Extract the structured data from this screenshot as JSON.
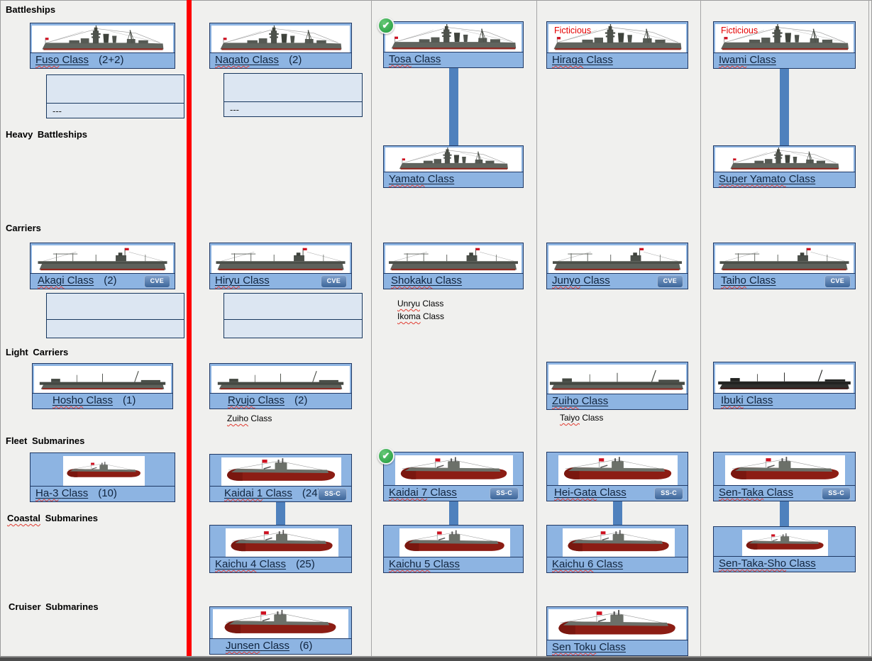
{
  "sections": [
    {
      "label": "Battleships"
    },
    {
      "label": "Heavy Battleships"
    },
    {
      "label": "Carriers"
    },
    {
      "label": "Light Carriers"
    },
    {
      "label": "Fleet Submarines"
    },
    {
      "label": "Coastal Submarines",
      "squiggle_first_word": true
    },
    {
      "label": "Cruiser Submarines"
    }
  ],
  "cards": [
    {
      "id": "fuso",
      "name": "Fuso",
      "suffix": "Class",
      "count": "(2+2)",
      "badge": "",
      "completed": false,
      "overlay_label": "",
      "ship_icon": "battleship-silhouette"
    },
    {
      "id": "nagato",
      "name": "Nagato",
      "suffix": "Class",
      "count": "(2)",
      "badge": "",
      "completed": false,
      "overlay_label": "",
      "ship_icon": "battleship-silhouette"
    },
    {
      "id": "tosa",
      "name": "Tosa",
      "suffix": "Class",
      "count": "",
      "badge": "",
      "completed": true,
      "overlay_label": "",
      "ship_icon": "battleship-silhouette"
    },
    {
      "id": "hiraga",
      "name": "Hiraga",
      "suffix": "Class",
      "count": "",
      "badge": "",
      "completed": false,
      "overlay_label": "Ficticious",
      "ship_icon": "battleship-silhouette"
    },
    {
      "id": "iwami",
      "name": "Iwami",
      "suffix": "Class",
      "count": "",
      "badge": "",
      "completed": false,
      "overlay_label": "Ficticious",
      "ship_icon": "battleship-silhouette"
    },
    {
      "id": "yamato",
      "name": "Yamato",
      "suffix": "Class",
      "count": "",
      "badge": "",
      "completed": false,
      "overlay_label": "",
      "ship_icon": "heavy-battleship-silhouette"
    },
    {
      "id": "superyamato",
      "name": "Super Yamato",
      "suffix": "Class",
      "count": "",
      "badge": "",
      "completed": false,
      "overlay_label": "",
      "ship_icon": "heavy-battleship-silhouette"
    },
    {
      "id": "akagi",
      "name": "Akagi",
      "suffix": "Class",
      "count": "(2)",
      "badge": "CVE",
      "completed": false,
      "overlay_label": "",
      "ship_icon": "fleet-carrier-silhouette"
    },
    {
      "id": "hiryu",
      "name": "Hiryu",
      "suffix": "Class",
      "count": "",
      "badge": "CVE",
      "completed": false,
      "overlay_label": "",
      "ship_icon": "fleet-carrier-silhouette"
    },
    {
      "id": "shokaku",
      "name": "Shokaku",
      "suffix": "Class",
      "count": "",
      "badge": "",
      "completed": false,
      "overlay_label": "",
      "ship_icon": "fleet-carrier-silhouette"
    },
    {
      "id": "junyo",
      "name": "Junyo",
      "suffix": "Class",
      "count": "",
      "badge": "CVE",
      "completed": false,
      "overlay_label": "",
      "ship_icon": "fleet-carrier-silhouette"
    },
    {
      "id": "taiho",
      "name": "Taiho",
      "suffix": "Class",
      "count": "",
      "badge": "CVE",
      "completed": false,
      "overlay_label": "",
      "ship_icon": "fleet-carrier-silhouette"
    },
    {
      "id": "hosho",
      "name": "Hosho",
      "suffix": "Class",
      "count": "(1)",
      "badge": "",
      "completed": false,
      "overlay_label": "",
      "ship_icon": "light-carrier-silhouette"
    },
    {
      "id": "ryujo",
      "name": "Ryujo",
      "suffix": "Class",
      "count": "(2)",
      "badge": "",
      "completed": false,
      "overlay_label": "",
      "ship_icon": "light-carrier-silhouette"
    },
    {
      "id": "zuiho",
      "name": "Zuiho",
      "suffix": "Class",
      "count": "",
      "badge": "",
      "completed": false,
      "overlay_label": "",
      "ship_icon": "light-carrier-silhouette"
    },
    {
      "id": "ibuki",
      "name": "Ibuki",
      "suffix": "Class",
      "count": "",
      "badge": "",
      "completed": false,
      "overlay_label": "",
      "ship_icon": "light-carrier-silhouette"
    },
    {
      "id": "ha3",
      "name": "Ha-3",
      "suffix": "Class",
      "count": "(10)",
      "badge": "",
      "completed": false,
      "overlay_label": "",
      "ship_icon": "submarine-silhouette"
    },
    {
      "id": "kaidai1",
      "name": "Kaidai 1",
      "suffix": "Class",
      "count": "(24)",
      "badge": "SS-C",
      "completed": false,
      "overlay_label": "",
      "ship_icon": "submarine-silhouette"
    },
    {
      "id": "kaidai7",
      "name": "Kaidai 7",
      "suffix": "Class",
      "count": "",
      "badge": "SS-C",
      "completed": true,
      "overlay_label": "",
      "ship_icon": "submarine-silhouette"
    },
    {
      "id": "heigata",
      "name": "Hei-Gata",
      "suffix": "Class",
      "count": "",
      "badge": "SS-C",
      "completed": false,
      "overlay_label": "",
      "ship_icon": "submarine-silhouette"
    },
    {
      "id": "sentaka",
      "name": "Sen-Taka",
      "suffix": "Class",
      "count": "",
      "badge": "SS-C",
      "completed": false,
      "overlay_label": "",
      "ship_icon": "submarine-silhouette"
    },
    {
      "id": "kaichu4",
      "name": "Kaichu 4",
      "suffix": "Class",
      "count": "(25)",
      "badge": "",
      "completed": false,
      "overlay_label": "",
      "ship_icon": "submarine-silhouette"
    },
    {
      "id": "kaichu5",
      "name": "Kaichu 5",
      "suffix": "Class",
      "count": "",
      "badge": "",
      "completed": false,
      "overlay_label": "",
      "ship_icon": "submarine-silhouette"
    },
    {
      "id": "kaichu6",
      "name": "Kaichu 6",
      "suffix": "Class",
      "count": "",
      "badge": "",
      "completed": false,
      "overlay_label": "",
      "ship_icon": "submarine-silhouette"
    },
    {
      "id": "sentakasho",
      "name": "Sen-Taka-Sho",
      "suffix": "Class",
      "count": "",
      "badge": "",
      "completed": false,
      "overlay_label": "",
      "ship_icon": "submarine-silhouette"
    },
    {
      "id": "junsen",
      "name": "Junsen",
      "suffix": "Class",
      "count": "(6)",
      "badge": "",
      "completed": false,
      "overlay_label": "",
      "ship_icon": "submarine-silhouette"
    },
    {
      "id": "sentoku",
      "name": "Sen Toku",
      "suffix": "Class",
      "count": "",
      "badge": "",
      "completed": false,
      "overlay_label": "",
      "ship_icon": "submarine-silhouette"
    }
  ],
  "notes": [
    {
      "id": "zuiho-note",
      "name": "Zuiho",
      "suffix": "Class"
    },
    {
      "id": "unryu-note",
      "name": "Unryu",
      "suffix": "Class"
    },
    {
      "id": "ikoma-note",
      "name": "Ikoma",
      "suffix": "Class"
    },
    {
      "id": "taiyo-note",
      "name": "Taiyo",
      "suffix": "Class"
    }
  ],
  "slot_boxes": [
    {
      "id": "box-fuso",
      "text": "---"
    },
    {
      "id": "box-nagato",
      "text": "---"
    },
    {
      "id": "box-akagi",
      "text": ""
    },
    {
      "id": "box-hiryu",
      "text": ""
    }
  ],
  "links": [
    {
      "from": "tosa",
      "to": "yamato"
    },
    {
      "from": "iwami",
      "to": "superyamato"
    },
    {
      "from": "kaidai1",
      "to": "kaichu4"
    },
    {
      "from": "kaidai7",
      "to": "kaichu5"
    },
    {
      "from": "heigata",
      "to": "kaichu6"
    },
    {
      "from": "sentaka",
      "to": "sentakasho"
    }
  ],
  "colors": {
    "card_blue": "#8db4e2",
    "slot_box_blue": "#dce6f2",
    "border_navy": "#1f3864",
    "connector_blue": "#4f81bd",
    "divider_red": "#fe0000",
    "badge_blue": "#3d6699",
    "check_green": "#1e9a3a",
    "fictitious_red": "#e60000",
    "background_gray": "#f0f0ee"
  }
}
